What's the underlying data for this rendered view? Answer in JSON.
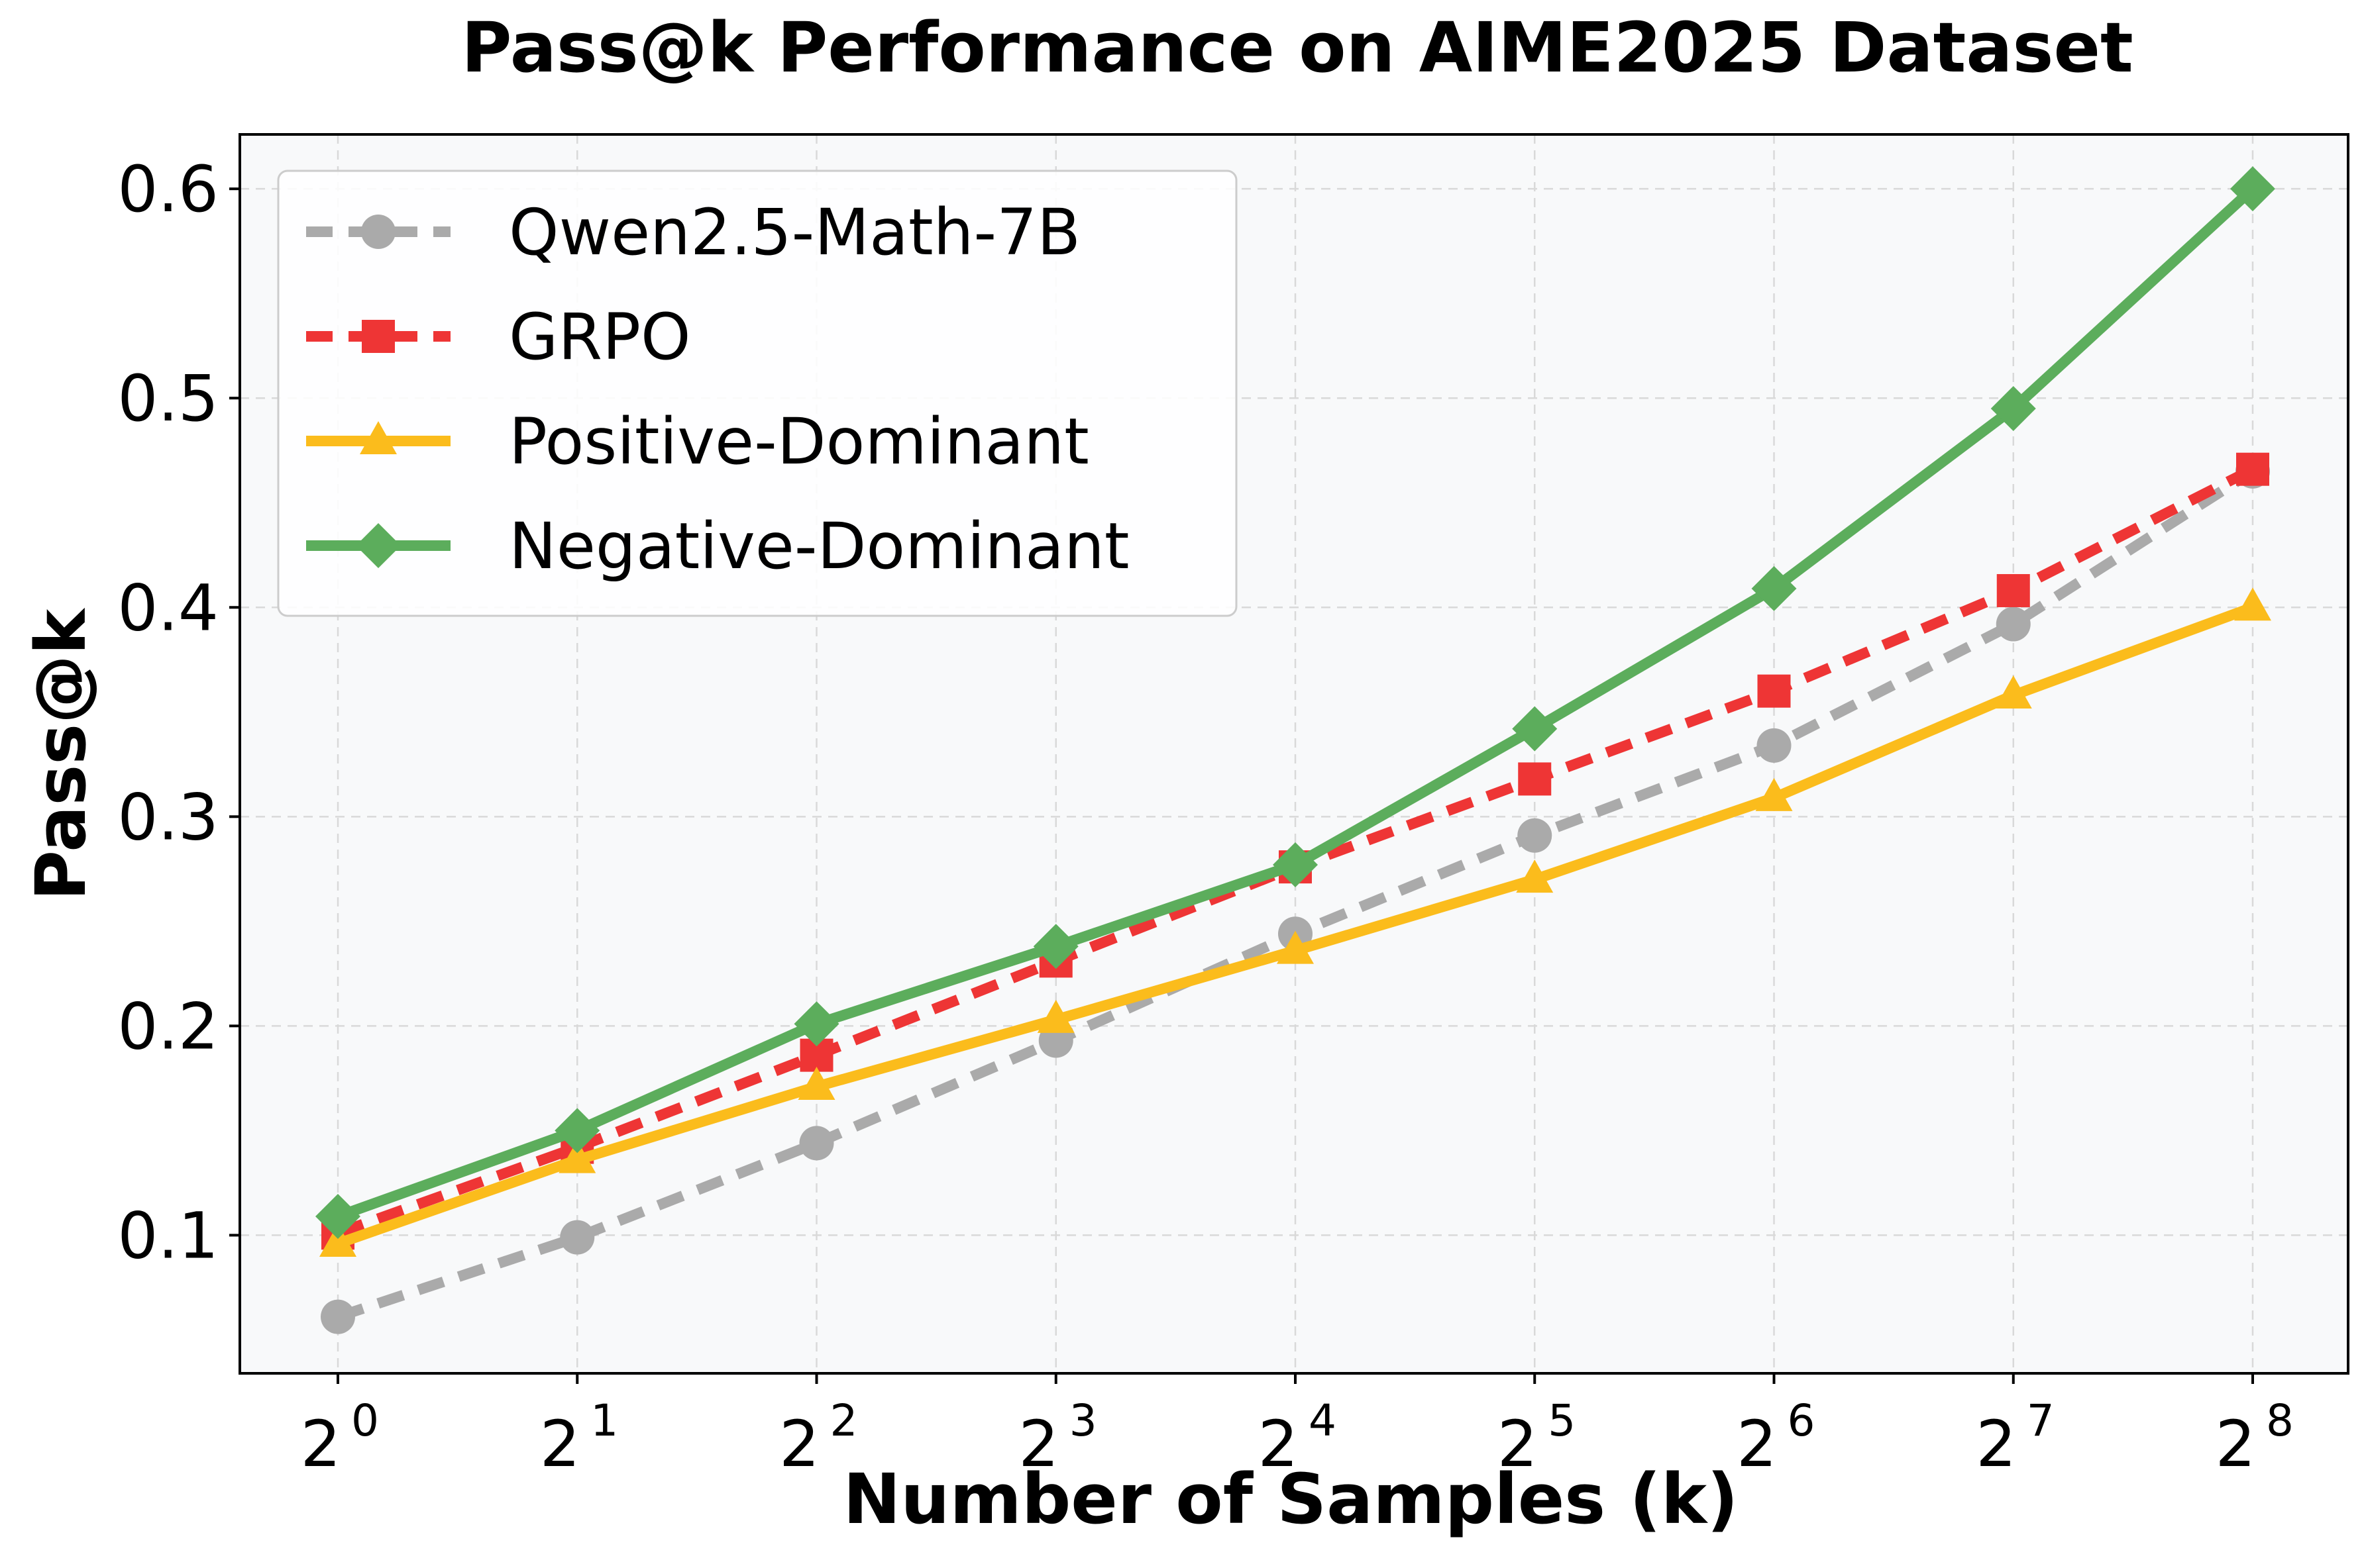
{
  "chart_data": {
    "type": "line",
    "title": "Pass@k Performance on AIME2025 Dataset",
    "xlabel": "Number of Samples (k)",
    "ylabel": "Pass@k",
    "x_base": "2",
    "x_exponents": [
      "0",
      "1",
      "2",
      "3",
      "4",
      "5",
      "6",
      "7",
      "8"
    ],
    "x": [
      1,
      2,
      4,
      8,
      16,
      32,
      64,
      128,
      256
    ],
    "x_scale": "log2",
    "ylim": [
      0.034,
      0.626
    ],
    "yticks": [
      0.1,
      0.2,
      0.3,
      0.4,
      0.5,
      0.6
    ],
    "ytick_labels": [
      "0.1",
      "0.2",
      "0.3",
      "0.4",
      "0.5",
      "0.6"
    ],
    "grid": true,
    "legend_position": "top-left",
    "background": "#f8f9fa",
    "series": [
      {
        "name": "Qwen2.5-Math-7B",
        "color": "#aaaaaa",
        "line_style": "dashed",
        "marker": "circle",
        "values": [
          0.061,
          0.099,
          0.144,
          0.193,
          0.244,
          0.291,
          0.334,
          0.392,
          0.465
        ]
      },
      {
        "name": "GRPO",
        "color": "#ee3535",
        "line_style": "dashed",
        "marker": "square",
        "values": [
          0.101,
          0.142,
          0.186,
          0.231,
          0.276,
          0.318,
          0.36,
          0.408,
          0.466
        ]
      },
      {
        "name": "Positive-Dominant",
        "color": "#fbbc1c",
        "line_style": "solid",
        "marker": "triangle",
        "values": [
          0.096,
          0.136,
          0.171,
          0.203,
          0.236,
          0.27,
          0.309,
          0.358,
          0.4
        ]
      },
      {
        "name": "Negative-Dominant",
        "color": "#5cad5c",
        "line_style": "solid",
        "marker": "diamond",
        "values": [
          0.109,
          0.15,
          0.201,
          0.238,
          0.277,
          0.342,
          0.409,
          0.495,
          0.6
        ]
      }
    ]
  }
}
